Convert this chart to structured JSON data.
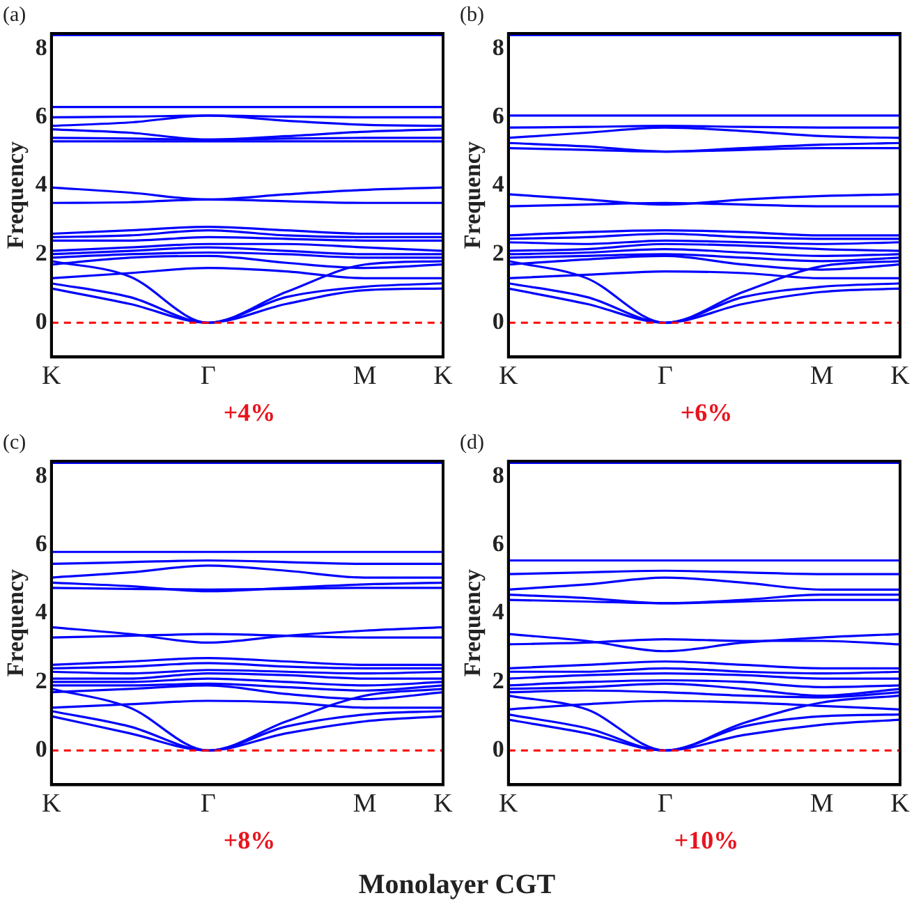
{
  "chart_data": [
    {
      "type": "line",
      "title": "(a)",
      "ylabel": "Frequency",
      "annotations": [
        "+4%"
      ],
      "categories": [
        "K",
        null,
        "Γ",
        null,
        "M",
        "K"
      ],
      "ylim": [
        -1,
        8.45
      ],
      "yticks": [
        0,
        2,
        4,
        6,
        8
      ],
      "grid": false,
      "marker": "none",
      "line_style": "solid",
      "ref_lines": [
        {
          "axis": "y",
          "value": 0,
          "color": "#ff0000",
          "line_style": "dashed"
        }
      ],
      "series": [
        {
          "color": "#0000ff",
          "values": [
            8.4,
            8.4,
            8.4,
            8.4,
            8.4,
            8.4
          ]
        },
        {
          "color": "#0000ff",
          "values": [
            6.3,
            6.3,
            6.3,
            6.3,
            6.3,
            6.3
          ]
        },
        {
          "color": "#0000ff",
          "values": [
            6.0,
            6.02,
            6.05,
            6.02,
            6.0,
            6.0
          ]
        },
        {
          "color": "#0000ff",
          "values": [
            5.75,
            5.85,
            6.05,
            5.9,
            5.78,
            5.75
          ]
        },
        {
          "color": "#0000ff",
          "values": [
            5.65,
            5.55,
            5.35,
            5.45,
            5.58,
            5.65
          ]
        },
        {
          "color": "#0000ff",
          "values": [
            5.4,
            5.38,
            5.35,
            5.38,
            5.4,
            5.4
          ]
        },
        {
          "color": "#0000ff",
          "values": [
            5.3,
            5.3,
            5.3,
            5.3,
            5.3,
            5.3
          ]
        },
        {
          "color": "#0000ff",
          "values": [
            3.95,
            3.8,
            3.6,
            3.75,
            3.88,
            3.95
          ]
        },
        {
          "color": "#0000ff",
          "values": [
            3.5,
            3.52,
            3.6,
            3.55,
            3.5,
            3.5
          ]
        },
        {
          "color": "#0000ff",
          "values": [
            2.6,
            2.7,
            2.8,
            2.7,
            2.6,
            2.6
          ]
        },
        {
          "color": "#0000ff",
          "values": [
            2.5,
            2.55,
            2.7,
            2.55,
            2.5,
            2.5
          ]
        },
        {
          "color": "#0000ff",
          "values": [
            2.4,
            2.4,
            2.5,
            2.45,
            2.4,
            2.4
          ]
        },
        {
          "color": "#0000ff",
          "values": [
            2.1,
            2.2,
            2.3,
            2.3,
            2.2,
            2.1
          ]
        },
        {
          "color": "#0000ff",
          "values": [
            2.0,
            2.1,
            2.2,
            2.1,
            2.0,
            2.0
          ]
        },
        {
          "color": "#0000ff",
          "values": [
            1.9,
            2.0,
            2.05,
            2.0,
            1.9,
            1.9
          ]
        },
        {
          "color": "#0000ff",
          "values": [
            1.7,
            1.9,
            1.95,
            1.75,
            1.6,
            1.7
          ]
        },
        {
          "color": "#0000ff",
          "values": [
            1.3,
            1.45,
            1.6,
            1.5,
            1.3,
            1.3
          ]
        },
        {
          "color": "#0000ff",
          "values": [
            1.8,
            1.35,
            0,
            0.9,
            1.7,
            1.8
          ]
        },
        {
          "color": "#0000ff",
          "values": [
            1.0,
            0.55,
            0,
            0.55,
            0.95,
            1.0
          ]
        },
        {
          "color": "#0000ff",
          "values": [
            1.15,
            0.75,
            0,
            0.75,
            1.05,
            1.15
          ]
        }
      ]
    },
    {
      "type": "line",
      "title": "(b)",
      "ylabel": "Frequency",
      "annotations": [
        "+6%"
      ],
      "categories": [
        "K",
        null,
        "Γ",
        null,
        "M",
        "K"
      ],
      "ylim": [
        -1,
        8.45
      ],
      "yticks": [
        0,
        2,
        4,
        6,
        8
      ],
      "grid": false,
      "marker": "none",
      "line_style": "solid",
      "ref_lines": [
        {
          "axis": "y",
          "value": 0,
          "color": "#ff0000",
          "line_style": "dashed"
        }
      ],
      "series": [
        {
          "color": "#0000ff",
          "values": [
            8.4,
            8.4,
            8.4,
            8.4,
            8.4,
            8.4
          ]
        },
        {
          "color": "#0000ff",
          "values": [
            6.05,
            6.05,
            6.05,
            6.05,
            6.05,
            6.05
          ]
        },
        {
          "color": "#0000ff",
          "values": [
            5.7,
            5.72,
            5.75,
            5.72,
            5.7,
            5.7
          ]
        },
        {
          "color": "#0000ff",
          "values": [
            5.4,
            5.55,
            5.7,
            5.6,
            5.45,
            5.4
          ]
        },
        {
          "color": "#0000ff",
          "values": [
            5.25,
            5.15,
            5.0,
            5.1,
            5.2,
            5.25
          ]
        },
        {
          "color": "#0000ff",
          "values": [
            5.1,
            5.05,
            5.0,
            5.05,
            5.1,
            5.1
          ]
        },
        {
          "color": "#0000ff",
          "values": [
            3.75,
            3.6,
            3.45,
            3.6,
            3.7,
            3.75
          ]
        },
        {
          "color": "#0000ff",
          "values": [
            3.4,
            3.45,
            3.5,
            3.45,
            3.4,
            3.4
          ]
        },
        {
          "color": "#0000ff",
          "values": [
            2.55,
            2.65,
            2.7,
            2.65,
            2.55,
            2.55
          ]
        },
        {
          "color": "#0000ff",
          "values": [
            2.45,
            2.5,
            2.6,
            2.5,
            2.45,
            2.45
          ]
        },
        {
          "color": "#0000ff",
          "values": [
            2.35,
            2.3,
            2.4,
            2.35,
            2.3,
            2.35
          ]
        },
        {
          "color": "#0000ff",
          "values": [
            2.1,
            2.15,
            2.3,
            2.25,
            2.15,
            2.1
          ]
        },
        {
          "color": "#0000ff",
          "values": [
            2.0,
            2.05,
            2.15,
            2.05,
            1.95,
            2.0
          ]
        },
        {
          "color": "#0000ff",
          "values": [
            1.9,
            1.95,
            2.0,
            1.9,
            1.8,
            1.9
          ]
        },
        {
          "color": "#0000ff",
          "values": [
            1.7,
            1.85,
            1.95,
            1.7,
            1.55,
            1.7
          ]
        },
        {
          "color": "#0000ff",
          "values": [
            1.3,
            1.4,
            1.5,
            1.45,
            1.3,
            1.3
          ]
        },
        {
          "color": "#0000ff",
          "values": [
            1.8,
            1.3,
            0,
            0.9,
            1.65,
            1.8
          ]
        },
        {
          "color": "#0000ff",
          "values": [
            1.0,
            0.55,
            0,
            0.55,
            0.9,
            1.0
          ]
        },
        {
          "color": "#0000ff",
          "values": [
            1.15,
            0.75,
            0,
            0.75,
            1.05,
            1.15
          ]
        }
      ]
    },
    {
      "type": "line",
      "title": "(c)",
      "ylabel": "Frequency",
      "annotations": [
        "+8%"
      ],
      "categories": [
        "K",
        null,
        "Γ",
        null,
        "M",
        "K"
      ],
      "ylim": [
        -1,
        8.45
      ],
      "yticks": [
        0,
        2,
        4,
        6,
        8
      ],
      "grid": false,
      "marker": "none",
      "line_style": "solid",
      "ref_lines": [
        {
          "axis": "y",
          "value": 0,
          "color": "#ff0000",
          "line_style": "dashed"
        }
      ],
      "series": [
        {
          "color": "#0000ff",
          "values": [
            8.4,
            8.4,
            8.4,
            8.4,
            8.4,
            8.4
          ]
        },
        {
          "color": "#0000ff",
          "values": [
            5.8,
            5.8,
            5.8,
            5.8,
            5.8,
            5.8
          ]
        },
        {
          "color": "#0000ff",
          "values": [
            5.45,
            5.5,
            5.55,
            5.5,
            5.45,
            5.45
          ]
        },
        {
          "color": "#0000ff",
          "values": [
            5.05,
            5.2,
            5.4,
            5.25,
            5.05,
            5.05
          ]
        },
        {
          "color": "#0000ff",
          "values": [
            4.9,
            4.8,
            4.65,
            4.75,
            4.85,
            4.9
          ]
        },
        {
          "color": "#0000ff",
          "values": [
            4.75,
            4.72,
            4.7,
            4.72,
            4.75,
            4.75
          ]
        },
        {
          "color": "#0000ff",
          "values": [
            3.6,
            3.4,
            3.15,
            3.35,
            3.5,
            3.6
          ]
        },
        {
          "color": "#0000ff",
          "values": [
            3.3,
            3.35,
            3.4,
            3.35,
            3.3,
            3.3
          ]
        },
        {
          "color": "#0000ff",
          "values": [
            2.5,
            2.6,
            2.7,
            2.6,
            2.5,
            2.5
          ]
        },
        {
          "color": "#0000ff",
          "values": [
            2.4,
            2.45,
            2.55,
            2.45,
            2.4,
            2.4
          ]
        },
        {
          "color": "#0000ff",
          "values": [
            2.3,
            2.25,
            2.35,
            2.3,
            2.25,
            2.3
          ]
        },
        {
          "color": "#0000ff",
          "values": [
            2.1,
            2.1,
            2.25,
            2.2,
            2.1,
            2.1
          ]
        },
        {
          "color": "#0000ff",
          "values": [
            2.0,
            2.0,
            2.1,
            2.0,
            1.9,
            2.0
          ]
        },
        {
          "color": "#0000ff",
          "values": [
            1.9,
            1.9,
            1.95,
            1.85,
            1.75,
            1.9
          ]
        },
        {
          "color": "#0000ff",
          "values": [
            1.7,
            1.8,
            1.9,
            1.65,
            1.5,
            1.7
          ]
        },
        {
          "color": "#0000ff",
          "values": [
            1.25,
            1.35,
            1.45,
            1.4,
            1.25,
            1.25
          ]
        },
        {
          "color": "#0000ff",
          "values": [
            1.8,
            1.25,
            0,
            0.85,
            1.6,
            1.8
          ]
        },
        {
          "color": "#0000ff",
          "values": [
            1.0,
            0.5,
            0,
            0.5,
            0.85,
            1.0
          ]
        },
        {
          "color": "#0000ff",
          "values": [
            1.15,
            0.7,
            0,
            0.7,
            1.05,
            1.15
          ]
        }
      ]
    },
    {
      "type": "line",
      "title": "(d)",
      "ylabel": "Frequency",
      "annotations": [
        "+10%"
      ],
      "categories": [
        "K",
        null,
        "Γ",
        null,
        "M",
        "K"
      ],
      "ylim": [
        -1,
        8.45
      ],
      "yticks": [
        0,
        2,
        4,
        6,
        8
      ],
      "grid": false,
      "marker": "none",
      "line_style": "solid",
      "ref_lines": [
        {
          "axis": "y",
          "value": 0,
          "color": "#ff0000",
          "line_style": "dashed"
        }
      ],
      "series": [
        {
          "color": "#0000ff",
          "values": [
            8.4,
            8.4,
            8.4,
            8.4,
            8.4,
            8.4
          ]
        },
        {
          "color": "#0000ff",
          "values": [
            5.55,
            5.55,
            5.55,
            5.55,
            5.55,
            5.55
          ]
        },
        {
          "color": "#0000ff",
          "values": [
            5.15,
            5.2,
            5.25,
            5.2,
            5.15,
            5.15
          ]
        },
        {
          "color": "#0000ff",
          "values": [
            4.7,
            4.85,
            5.05,
            4.9,
            4.7,
            4.7
          ]
        },
        {
          "color": "#0000ff",
          "values": [
            4.55,
            4.45,
            4.3,
            4.4,
            4.55,
            4.55
          ]
        },
        {
          "color": "#0000ff",
          "values": [
            4.4,
            4.35,
            4.3,
            4.35,
            4.4,
            4.4
          ]
        },
        {
          "color": "#0000ff",
          "values": [
            3.4,
            3.2,
            2.9,
            3.15,
            3.3,
            3.4
          ]
        },
        {
          "color": "#0000ff",
          "values": [
            3.1,
            3.15,
            3.25,
            3.2,
            3.2,
            3.1
          ]
        },
        {
          "color": "#0000ff",
          "values": [
            2.4,
            2.5,
            2.6,
            2.5,
            2.4,
            2.4
          ]
        },
        {
          "color": "#0000ff",
          "values": [
            2.3,
            2.3,
            2.4,
            2.3,
            2.25,
            2.3
          ]
        },
        {
          "color": "#0000ff",
          "values": [
            2.1,
            2.2,
            2.25,
            2.2,
            2.1,
            2.1
          ]
        },
        {
          "color": "#0000ff",
          "values": [
            1.9,
            2.0,
            2.05,
            2.0,
            1.85,
            1.9
          ]
        },
        {
          "color": "#0000ff",
          "values": [
            1.8,
            1.85,
            1.95,
            1.8,
            1.6,
            1.8
          ]
        },
        {
          "color": "#0000ff",
          "values": [
            1.7,
            1.75,
            1.7,
            1.6,
            1.55,
            1.7
          ]
        },
        {
          "color": "#0000ff",
          "values": [
            1.2,
            1.35,
            1.45,
            1.4,
            1.3,
            1.2
          ]
        },
        {
          "color": "#0000ff",
          "values": [
            1.6,
            1.2,
            0,
            0.8,
            1.4,
            1.6
          ]
        },
        {
          "color": "#0000ff",
          "values": [
            0.9,
            0.5,
            0,
            0.45,
            0.75,
            0.9
          ]
        },
        {
          "color": "#0000ff",
          "values": [
            1.05,
            0.65,
            0,
            0.7,
            1.0,
            1.05
          ]
        }
      ]
    },
    {
      "type": "other",
      "title": "Monolayer CGT"
    }
  ]
}
